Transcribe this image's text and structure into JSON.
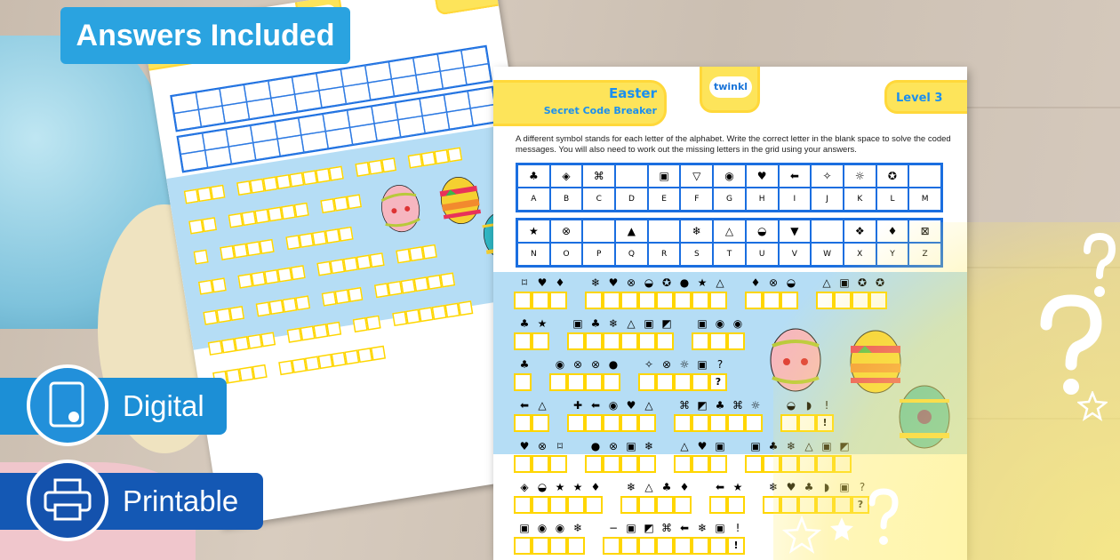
{
  "badges": {
    "answers": "Answers Included",
    "digital": "Digital",
    "printable": "Printable"
  },
  "icons": {
    "digital": "tablet-touch-icon",
    "printable": "printer-icon"
  },
  "colors": {
    "badge_light": "#2aa3e0",
    "badge_digital": "#1c8fd6",
    "badge_print": "#1458b4",
    "sheet_yellow": "#fde45a",
    "sheet_blue": "#b5ddf5",
    "grid_blue": "#1a6ee0",
    "title_blue": "#1a8ff0"
  },
  "sheet": {
    "title": "Easter",
    "subtitle": "Secret Code Breaker",
    "logo": "twinkl",
    "level": "Level 3",
    "instructions": "A different symbol stands for each letter of the alphabet. Write the correct letter in the blank space to solve the coded messages. You will also need to work out the missing letters in the grid using your answers.",
    "grid1": {
      "symbols": [
        "♣",
        "◈",
        "⌘",
        "",
        "▣",
        "▽",
        "◉",
        "♥",
        "⬅",
        "✧",
        "☼",
        "✪",
        ""
      ],
      "letters": [
        "A",
        "B",
        "C",
        "D",
        "E",
        "F",
        "G",
        "H",
        "I",
        "J",
        "K",
        "L",
        "M"
      ]
    },
    "grid2": {
      "symbols": [
        "★",
        "⊗",
        "",
        "▲",
        "",
        "❄",
        "△",
        "◒",
        "▼",
        "",
        "❖",
        "♦",
        "⊠"
      ],
      "letters": [
        "N",
        "O",
        "P",
        "Q",
        "R",
        "S",
        "T",
        "U",
        "V",
        "W",
        "X",
        "Y",
        "Z"
      ]
    },
    "messages": [
      [
        "⌑♥♦",
        "❄♥⊗◒✪●★'△",
        "♦⊗◒",
        "△▣✪✪"
      ],
      [
        "♣★",
        "▣♣❄△▣◩",
        "▣◉◉"
      ],
      [
        "♣",
        "◉⊗⊗●",
        "✧⊗☼▣?"
      ],
      [
        "⬅△",
        "✚⬅◉♥△",
        "⌘◩♣⌘☼",
        "◒◗!"
      ],
      [
        "♥⊗⌑",
        "●⊗▣❄",
        "△♥▣",
        "▣♣❄△▣◩"
      ],
      [
        "◈◒★★♦",
        "❄△♣♦",
        "⬅★",
        "❄♥♣◗▣?"
      ],
      [
        "▣◉◉❄",
        "−▣◩⌘⬅❄▣!"
      ]
    ]
  }
}
